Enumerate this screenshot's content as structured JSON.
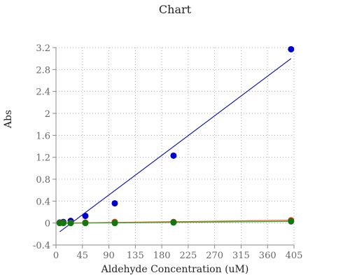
{
  "chart_data": {
    "type": "scatter",
    "title": "Chart",
    "xlabel": "Aldehyde Concentration (uM)",
    "ylabel": "Abs",
    "xlim": [
      0,
      405
    ],
    "ylim": [
      -0.4,
      3.2
    ],
    "xticks": [
      0,
      45,
      90,
      135,
      180,
      225,
      270,
      315,
      360,
      405
    ],
    "yticks": [
      -0.4,
      0,
      0.4,
      0.8,
      1.2,
      1.6,
      2,
      2.4,
      2.8,
      3.2
    ],
    "grid": true,
    "series": [
      {
        "color": "#0000cc",
        "line_color": "#1a1aaa",
        "x": [
          6.25,
          12.5,
          25,
          50,
          100,
          200,
          400
        ],
        "y": [
          0.01,
          0.02,
          0.04,
          0.13,
          0.36,
          1.23,
          3.17
        ],
        "trendline": {
          "x": [
            6.25,
            400
          ],
          "y": [
            -0.16,
            3.0
          ]
        }
      },
      {
        "color": "#cc3300",
        "line_color": "#e05a1a",
        "x": [
          6.25,
          12.5,
          25,
          50,
          100,
          200,
          400
        ],
        "y": [
          0.005,
          0.005,
          0.005,
          0.01,
          0.02,
          0.02,
          0.05
        ],
        "trendline": {
          "x": [
            6.25,
            400
          ],
          "y": [
            0.0,
            0.05
          ]
        }
      },
      {
        "color": "#117711",
        "line_color": "#33aa33",
        "x": [
          6.25,
          12.5,
          25,
          50,
          100,
          200,
          400
        ],
        "y": [
          0.0,
          0.0,
          0.0,
          0.0,
          0.0,
          0.01,
          0.03
        ],
        "trendline": {
          "x": [
            6.25,
            400
          ],
          "y": [
            -0.005,
            0.03
          ]
        }
      }
    ]
  }
}
